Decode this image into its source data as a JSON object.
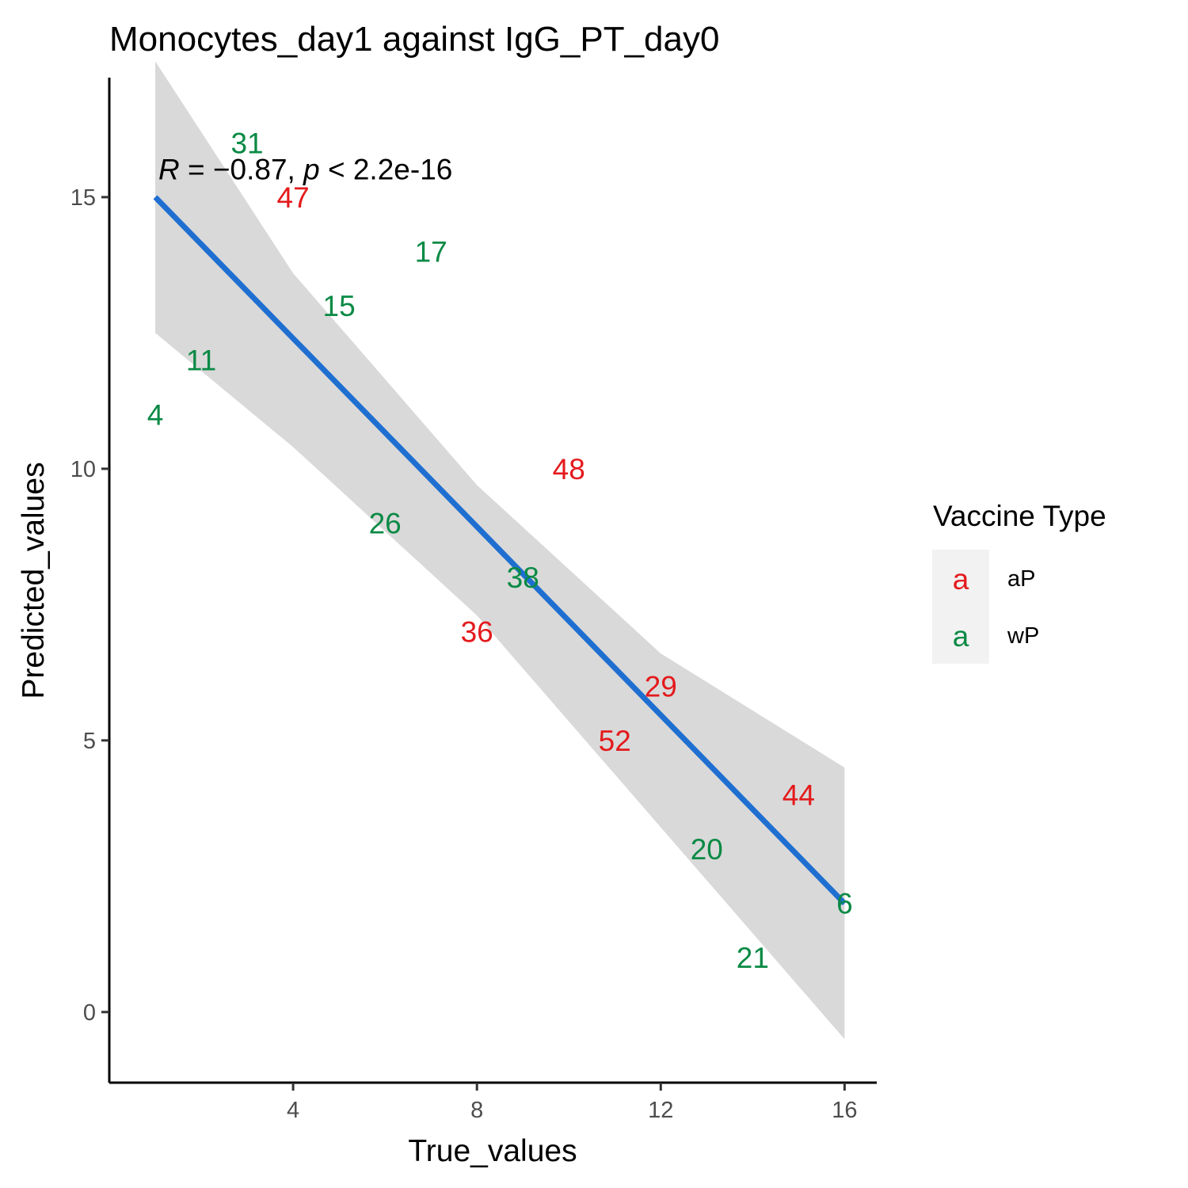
{
  "chart_data": {
    "type": "scatter",
    "title": "Monocytes_day1 against IgG_PT_day0",
    "xlabel": "True_values",
    "ylabel": "Predicted_values",
    "xlim": [
      0.0,
      16.7
    ],
    "ylim": [
      -1.3,
      17.2
    ],
    "xticks": [
      4,
      8,
      12,
      16
    ],
    "yticks": [
      0,
      5,
      10,
      15
    ],
    "grid": false,
    "series": [
      {
        "name": "aP",
        "color": "#e41a1c",
        "points": [
          {
            "label": "47",
            "x": 4,
            "y": 15
          },
          {
            "label": "48",
            "x": 10,
            "y": 10
          },
          {
            "label": "36",
            "x": 8,
            "y": 7
          },
          {
            "label": "29",
            "x": 12,
            "y": 6
          },
          {
            "label": "52",
            "x": 11,
            "y": 5
          },
          {
            "label": "44",
            "x": 15,
            "y": 4
          }
        ]
      },
      {
        "name": "wP",
        "color": "#0a8a45",
        "points": [
          {
            "label": "31",
            "x": 3,
            "y": 16
          },
          {
            "label": "17",
            "x": 7,
            "y": 14
          },
          {
            "label": "15",
            "x": 5,
            "y": 13
          },
          {
            "label": "11",
            "x": 2,
            "y": 12
          },
          {
            "label": "4",
            "x": 1,
            "y": 11
          },
          {
            "label": "26",
            "x": 6,
            "y": 9
          },
          {
            "label": "38",
            "x": 9,
            "y": 8
          },
          {
            "label": "20",
            "x": 13,
            "y": 3
          },
          {
            "label": "6",
            "x": 16,
            "y": 2
          },
          {
            "label": "21",
            "x": 14,
            "y": 1
          }
        ]
      }
    ],
    "regression": {
      "color": "#1f6fd1",
      "band_color": "#d9d9d9",
      "line": [
        [
          1,
          15.0
        ],
        [
          16,
          2.0
        ]
      ],
      "band_upper": [
        [
          1,
          17.5
        ],
        [
          4,
          13.6
        ],
        [
          8,
          9.7
        ],
        [
          12,
          6.6
        ],
        [
          16,
          4.5
        ]
      ],
      "band_lower": [
        [
          1,
          12.5
        ],
        [
          4,
          10.4
        ],
        [
          8,
          7.3
        ],
        [
          12,
          3.4
        ],
        [
          16,
          -0.5
        ]
      ]
    },
    "annotation": {
      "r_symbol": "R",
      "p_symbol": "p",
      "r_text": " = −0.87, ",
      "p_text": " < 2.2e-16",
      "x": 1,
      "y": 15.4
    },
    "legend": {
      "title": "Vaccine Type",
      "position": "right",
      "key_glyph": "a",
      "entries": [
        {
          "label": "aP",
          "color": "#e41a1c"
        },
        {
          "label": "wP",
          "color": "#0a8a45"
        }
      ]
    }
  }
}
